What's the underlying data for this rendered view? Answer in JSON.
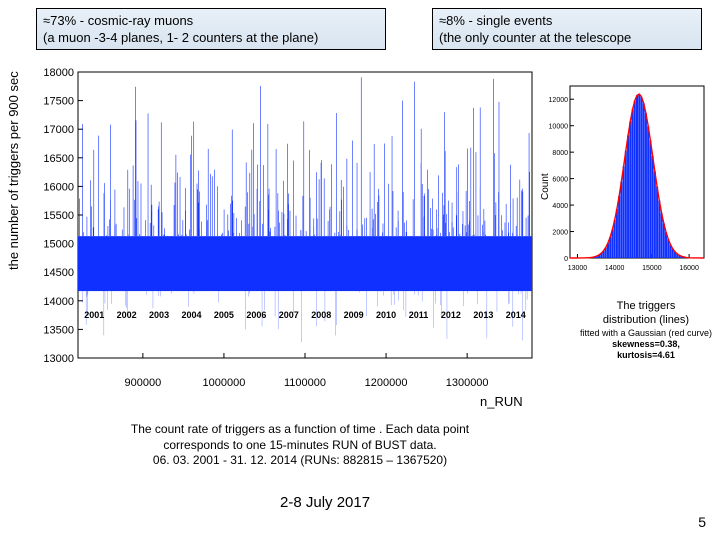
{
  "header": {
    "left": {
      "line1": "≈73% - cosmic-ray muons",
      "line2": "(a muon -3-4 planes, 1- 2 counters at the plane)"
    },
    "right": {
      "line1": "≈8% - single events",
      "line2": "(the only counter at the telescope"
    }
  },
  "main_chart": {
    "type": "scatter-dense",
    "ylabel": "the number of triggers per 900 sec",
    "xlabel": "n_RUN",
    "ylim": [
      13000,
      18000
    ],
    "ytick_step": 500,
    "xlim": [
      820000,
      1380000
    ],
    "xticks": [
      900000,
      1000000,
      1100000,
      1200000,
      1300000
    ],
    "data_color": "#1030ff",
    "year_labels": [
      "2001",
      "2002",
      "2003",
      "2004",
      "2005",
      "2006",
      "2007",
      "2008",
      "2009",
      "2010",
      "2011",
      "2012",
      "2013",
      "2014"
    ],
    "background_color": "#ffffff",
    "band_center": 14650,
    "band_halfwidth": 480,
    "spike_max": 18000,
    "n_spikes": 280
  },
  "inset_chart": {
    "type": "histogram+gaussian",
    "ylabel": "Count",
    "yticks": [
      0,
      2000,
      4000,
      6000,
      8000,
      10000,
      12000
    ],
    "xticks": [
      13000,
      14000,
      15000,
      16000
    ],
    "xlim": [
      12800,
      16400
    ],
    "ylim": [
      0,
      13000
    ],
    "hist_color": "#1030ff",
    "curve_color": "#ff0000",
    "mu": 14650,
    "sigma": 380,
    "peak": 12400
  },
  "side_caption": {
    "line1": "The  triggers",
    "line2": "distribution (lines)",
    "sub": "fitted with a Gaussian (red curve)",
    "stat1": "skewness=0.38,",
    "stat2": "kurtosis=4.61"
  },
  "body_caption": {
    "l1": "The count rate of triggers as a function of time . Each data point",
    "l2": "corresponds to one 15-minutes RUN of BUST data.",
    "l3": "06. 03. 2001    -    31. 12. 2014   (RUNs: 882815 – 1367520)"
  },
  "footer": {
    "date": "2-8 July 2017",
    "page": "5"
  }
}
